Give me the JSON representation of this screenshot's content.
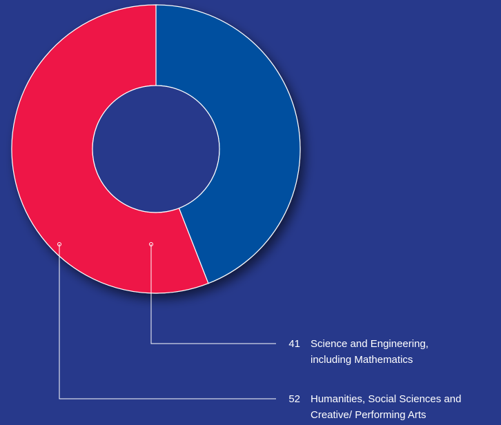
{
  "colors": {
    "background": "#27398b",
    "science": "#004f9f",
    "humanities": "#ee1847",
    "lines": "#ffffff"
  },
  "chart_data": {
    "type": "pie",
    "title": "",
    "slices": [
      {
        "label_lines": [
          "Science and Engineering,",
          "including Mathematics"
        ],
        "value": 41,
        "color": "#004f9f"
      },
      {
        "label_lines": [
          "Humanities, Social Sciences and",
          "Creative/ Performing Arts"
        ],
        "value": 52,
        "color": "#ee1847"
      }
    ],
    "style": "donut"
  }
}
